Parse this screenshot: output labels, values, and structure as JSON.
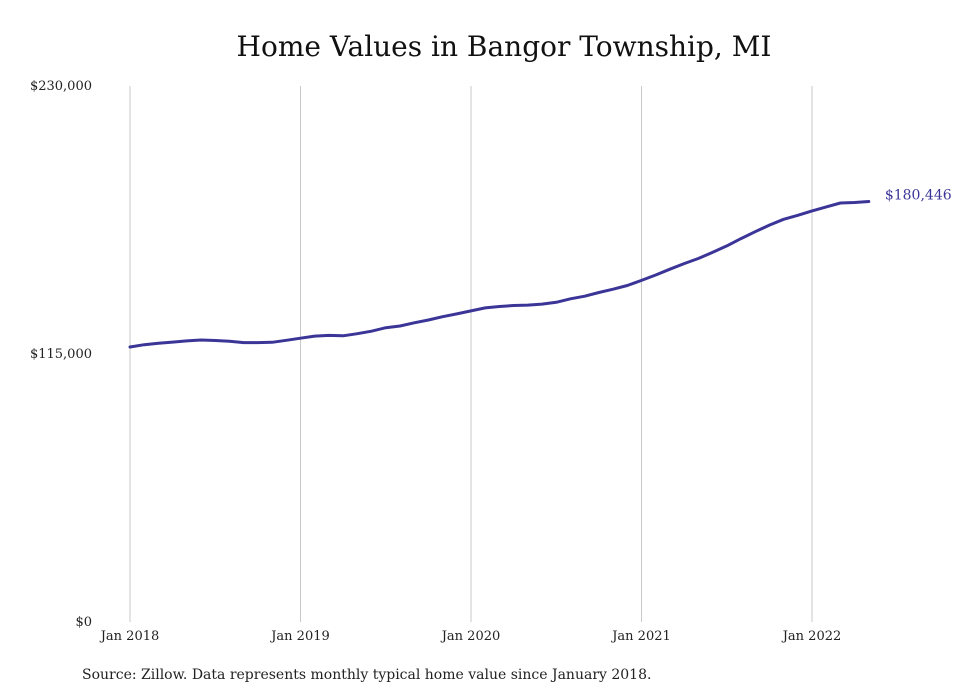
{
  "chart_data": {
    "type": "line",
    "title": "Home Values in Bangor Township, MI",
    "xlabel": "",
    "ylabel": "",
    "x_tick_labels": [
      "Jan 2018",
      "Jan 2019",
      "Jan 2020",
      "Jan 2021",
      "Jan 2022"
    ],
    "y_tick_labels": [
      "$0",
      "$115,000",
      "$230,000"
    ],
    "y_ticks": [
      0,
      115000,
      230000
    ],
    "ylim": [
      0,
      230000
    ],
    "xlim": [
      "2018-01",
      "2022-05"
    ],
    "grid": "vertical",
    "line_color": "#3b3598",
    "end_label": "$180,446",
    "series": [
      {
        "x": [
          "2018-01",
          "2018-02",
          "2018-03",
          "2018-04",
          "2018-05",
          "2018-06",
          "2018-07",
          "2018-08",
          "2018-09",
          "2018-10",
          "2018-11",
          "2018-12",
          "2019-01",
          "2019-02",
          "2019-03",
          "2019-04",
          "2019-05",
          "2019-06",
          "2019-07",
          "2019-08",
          "2019-09",
          "2019-10",
          "2019-11",
          "2019-12",
          "2020-01",
          "2020-02",
          "2020-03",
          "2020-04",
          "2020-05",
          "2020-06",
          "2020-07",
          "2020-08",
          "2020-09",
          "2020-10",
          "2020-11",
          "2020-12",
          "2021-01",
          "2021-02",
          "2021-03",
          "2021-04",
          "2021-05",
          "2021-06",
          "2021-07",
          "2021-08",
          "2021-09",
          "2021-10",
          "2021-11",
          "2021-12",
          "2022-01",
          "2022-02",
          "2022-03",
          "2022-04",
          "2022-05"
        ],
        "values": [
          118000,
          119000,
          119600,
          120100,
          120600,
          121000,
          120800,
          120500,
          119900,
          119900,
          120000,
          120900,
          121800,
          122700,
          123000,
          122800,
          123700,
          124800,
          126300,
          127000,
          128400,
          129600,
          131000,
          132200,
          133500,
          134800,
          135400,
          135800,
          136000,
          136400,
          137200,
          138700,
          139800,
          141400,
          142800,
          144400,
          146600,
          148900,
          151400,
          153800,
          156000,
          158600,
          161400,
          164500,
          167500,
          170300,
          172800,
          174500,
          176400,
          178100,
          179800,
          180000,
          180446
        ]
      }
    ]
  },
  "source_note": "Source: Zillow. Data represents monthly typical home value since January 2018."
}
